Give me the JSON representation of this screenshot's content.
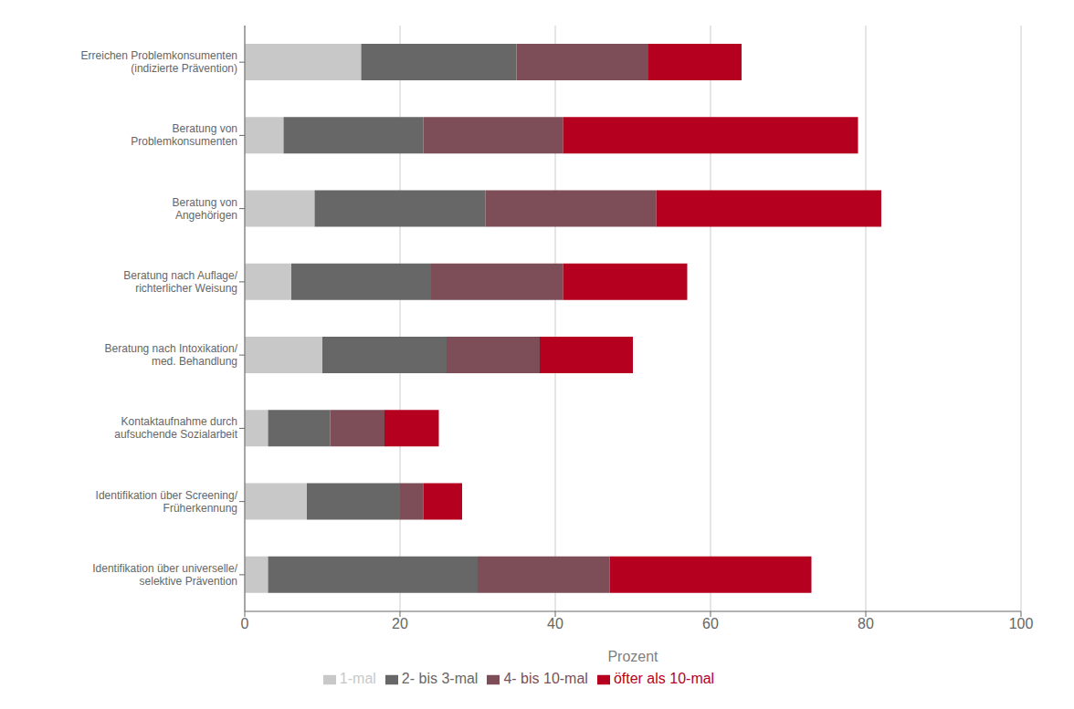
{
  "chart_data": {
    "type": "bar",
    "orientation": "horizontal",
    "stacked": true,
    "grid": true,
    "legend": "bottom",
    "xlabel": "Prozent",
    "categories": [
      "Erreichen Problemkonsumenten\n(indizierte Prävention)",
      "Beratung von\nProblemkonsumenten",
      "Beratung von\nAngehörigen",
      "Beratung nach Auflage/\nrichterlicher Weisung",
      "Beratung nach Intoxikation/\nmed. Behandlung",
      "Kontaktaufnahme durch\naufsuchende Sozialarbeit",
      "Identifikation über Screening/\nFrüherkennung",
      "Identifikation über universelle/\nselektive Prävention"
    ],
    "series": [
      {
        "name": "1-mal",
        "color": "#c8c8c8",
        "values": [
          15,
          5,
          9,
          6,
          10,
          3,
          8,
          3
        ]
      },
      {
        "name": "2- bis 3-mal",
        "color": "#676767",
        "values": [
          20,
          18,
          22,
          18,
          16,
          8,
          12,
          27
        ]
      },
      {
        "name": "4- bis 10-mal",
        "color": "#7d4e57",
        "values": [
          17,
          18,
          22,
          17,
          12,
          7,
          3,
          17
        ]
      },
      {
        "name": "öfter als 10-mal",
        "color": "#b5001f",
        "values": [
          12,
          38,
          29,
          16,
          12,
          7,
          5,
          26
        ]
      }
    ],
    "xlim": [
      0,
      100
    ],
    "xticks": [
      0,
      20,
      40,
      60,
      80,
      100
    ]
  }
}
